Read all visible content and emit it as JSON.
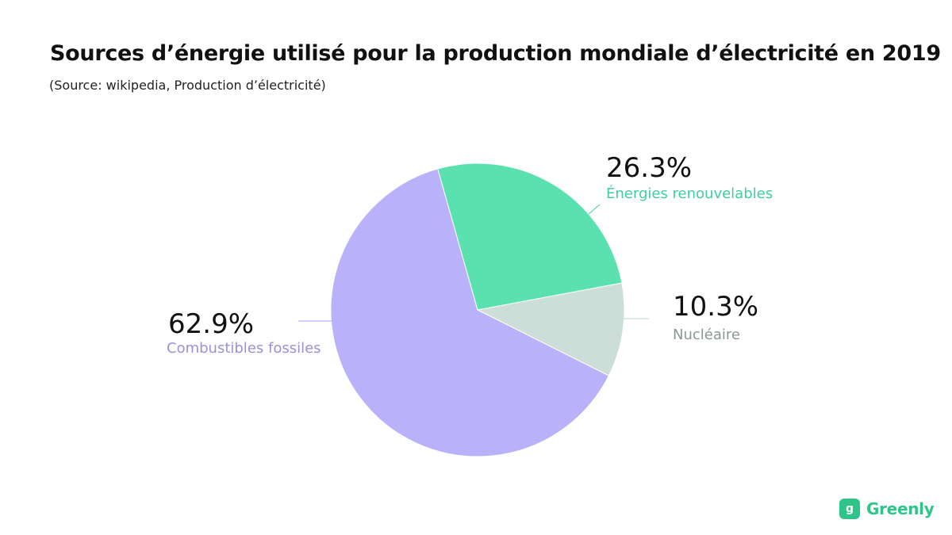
{
  "header": {
    "title": "Sources d’énergie utilisé pour la production mondiale d’électricité en 2019",
    "subtitle": "(Source: wikipedia, Production d’électricité)"
  },
  "chart_data": {
    "type": "pie",
    "title": "Sources d’énergie utilisé pour la production mondiale d’électricité en 2019",
    "subtitle": "(Source: wikipedia, Production d’électricité)",
    "slices": [
      {
        "label": "Combustibles fossiles",
        "value": 62.9,
        "value_label": "62.9%",
        "color": "#b9b1f9",
        "label_color": "#9a92d8"
      },
      {
        "label": "Énergies renouvelables",
        "value": 26.3,
        "value_label": "26.3%",
        "color": "#5be0b0",
        "label_color": "#3fcf9a"
      },
      {
        "label": "Nucléaire",
        "value": 10.3,
        "value_label": "10.3%",
        "color": "#ccded7",
        "label_color": "#8a9892"
      }
    ],
    "legend": "none",
    "data_labels": "outside"
  },
  "logo": {
    "mark": "g",
    "text": "Greenly",
    "color": "#2fc58a"
  }
}
